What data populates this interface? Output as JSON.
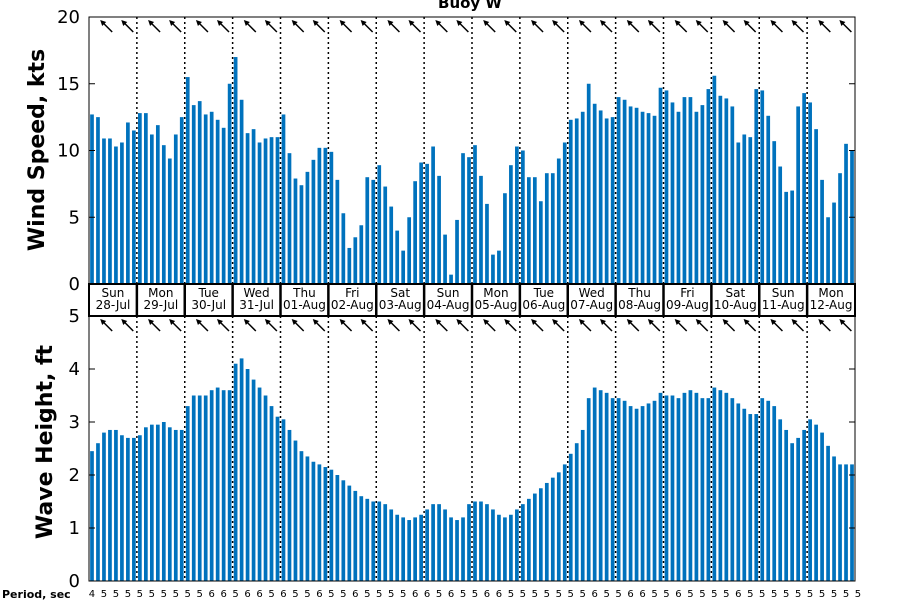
{
  "chart_data": [
    {
      "type": "bar",
      "title": "Buoy W",
      "ylabel": "Wind Speed, kts",
      "ylim": [
        0,
        20
      ],
      "yticks": [
        "0",
        "5",
        "10",
        "15",
        "20"
      ],
      "color": "#0072BD",
      "grid": "dotted vertical lines at midnight",
      "values": [
        12.7,
        12.5,
        10.9,
        10.9,
        10.3,
        10.6,
        12.1,
        11.5,
        12.8,
        12.8,
        11.2,
        11.9,
        10.4,
        9.4,
        11.2,
        12.5,
        15.5,
        13.4,
        13.7,
        12.7,
        12.9,
        12.3,
        11.7,
        15.0,
        17.0,
        13.8,
        11.3,
        11.6,
        10.6,
        10.9,
        11.0,
        11.0,
        12.7,
        9.8,
        7.9,
        7.4,
        8.4,
        9.3,
        10.2,
        10.2,
        9.9,
        7.8,
        5.3,
        2.7,
        3.5,
        4.4,
        8.0,
        7.8,
        8.9,
        7.3,
        5.8,
        4.0,
        2.5,
        5.0,
        7.7,
        9.1,
        9.0,
        10.3,
        8.1,
        3.7,
        0.7,
        4.8,
        9.8,
        9.5,
        10.4,
        8.1,
        6.0,
        2.2,
        2.5,
        6.8,
        8.9,
        10.3,
        10.0,
        8.0,
        8.0,
        6.2,
        8.3,
        8.3,
        9.4,
        10.6,
        12.3,
        12.4,
        12.9,
        15.0,
        13.5,
        13.0,
        12.4,
        12.5,
        14.0,
        13.8,
        13.3,
        13.2,
        12.9,
        12.8,
        12.6,
        14.7,
        14.5,
        13.6,
        12.9,
        14.0,
        14.0,
        12.9,
        13.4,
        14.6,
        15.6,
        14.1,
        13.9,
        13.3,
        10.6,
        11.2,
        11.0,
        14.6,
        14.5,
        12.6,
        10.7,
        8.8,
        6.9,
        7.0,
        13.3,
        14.3,
        13.6,
        11.6,
        7.8,
        5.0,
        6.1,
        8.3,
        10.5,
        10.0
      ]
    },
    {
      "type": "bar",
      "ylabel": "Wave Height, ft",
      "ylim": [
        0,
        5
      ],
      "yticks": [
        "0",
        "1",
        "2",
        "3",
        "4",
        "5"
      ],
      "color": "#0072BD",
      "values": [
        2.45,
        2.6,
        2.8,
        2.85,
        2.85,
        2.75,
        2.7,
        2.7,
        2.75,
        2.9,
        2.95,
        2.95,
        3.0,
        2.9,
        2.85,
        2.85,
        3.3,
        3.5,
        3.5,
        3.5,
        3.6,
        3.65,
        3.6,
        3.6,
        4.1,
        4.2,
        4.0,
        3.8,
        3.65,
        3.5,
        3.3,
        3.1,
        3.05,
        2.85,
        2.65,
        2.45,
        2.35,
        2.25,
        2.2,
        2.15,
        2.1,
        2.0,
        1.9,
        1.8,
        1.7,
        1.6,
        1.55,
        1.5,
        1.5,
        1.45,
        1.35,
        1.25,
        1.2,
        1.15,
        1.2,
        1.25,
        1.35,
        1.45,
        1.45,
        1.35,
        1.2,
        1.15,
        1.2,
        1.45,
        1.5,
        1.5,
        1.45,
        1.35,
        1.25,
        1.2,
        1.25,
        1.35,
        1.45,
        1.55,
        1.65,
        1.75,
        1.85,
        1.95,
        2.05,
        2.2,
        2.4,
        2.6,
        2.85,
        3.45,
        3.65,
        3.6,
        3.55,
        3.45,
        3.45,
        3.4,
        3.3,
        3.25,
        3.3,
        3.35,
        3.4,
        3.55,
        3.5,
        3.5,
        3.45,
        3.55,
        3.6,
        3.55,
        3.45,
        3.45,
        3.65,
        3.6,
        3.55,
        3.45,
        3.35,
        3.25,
        3.15,
        3.15,
        3.45,
        3.4,
        3.3,
        3.05,
        2.85,
        2.6,
        2.7,
        2.85,
        3.05,
        2.95,
        2.8,
        2.55,
        2.35,
        2.2,
        2.2,
        2.2
      ]
    }
  ],
  "days": [
    {
      "dow": "Sun",
      "date": "28-Jul"
    },
    {
      "dow": "Mon",
      "date": "29-Jul"
    },
    {
      "dow": "Tue",
      "date": "30-Jul"
    },
    {
      "dow": "Wed",
      "date": "31-Jul"
    },
    {
      "dow": "Thu",
      "date": "01-Aug"
    },
    {
      "dow": "Fri",
      "date": "02-Aug"
    },
    {
      "dow": "Sat",
      "date": "03-Aug"
    },
    {
      "dow": "Sun",
      "date": "04-Aug"
    },
    {
      "dow": "Mon",
      "date": "05-Aug"
    },
    {
      "dow": "Tue",
      "date": "06-Aug"
    },
    {
      "dow": "Wed",
      "date": "07-Aug"
    },
    {
      "dow": "Thu",
      "date": "08-Aug"
    },
    {
      "dow": "Fri",
      "date": "09-Aug"
    },
    {
      "dow": "Sat",
      "date": "10-Aug"
    },
    {
      "dow": "Sun",
      "date": "11-Aug"
    },
    {
      "dow": "Mon",
      "date": "12-Aug"
    }
  ],
  "period_label": "Period, sec",
  "periods": [
    "4",
    "5",
    "5",
    "5",
    "5",
    "5",
    "5",
    "5",
    "5",
    "5",
    "5",
    "5",
    "5",
    "5",
    "5",
    "5",
    "5",
    "6",
    "5",
    "5",
    "6",
    "6",
    "6",
    "6",
    "5",
    "6",
    "6",
    "5",
    "6",
    "5",
    "5",
    "5",
    "6",
    "5",
    "5",
    "6",
    "5",
    "5",
    "6",
    "6",
    "5",
    "5",
    "5",
    "5",
    "6",
    "5",
    "5",
    "6",
    "5",
    "5",
    "5",
    "5",
    "5",
    "5",
    "6",
    "5",
    "6",
    "5",
    "5",
    "5",
    "6",
    "5",
    "5",
    "5",
    "5",
    "5",
    "6",
    "5",
    "6",
    "5",
    "5",
    "5",
    "5",
    "5",
    "5",
    "5",
    "5",
    "5",
    "5",
    "5",
    "5",
    "5",
    "5",
    "6",
    "6",
    "6",
    "5",
    "5",
    "5",
    "5",
    "6",
    "5",
    "6",
    "5",
    "5",
    "5",
    "5",
    "5",
    "6",
    "6",
    "5",
    "5",
    "5",
    "5",
    "5",
    "5",
    "5",
    "5",
    "6",
    "5",
    "5",
    "5",
    "5",
    "5",
    "5",
    "6",
    "5",
    "5",
    "5",
    "5",
    "5",
    "5",
    "5",
    "5",
    "5",
    "5",
    "5",
    "5",
    "5",
    "5"
  ],
  "wind_dir_icon": "arrow-northwest-icon",
  "wave_dir_icon": "arrow-northwest-icon"
}
